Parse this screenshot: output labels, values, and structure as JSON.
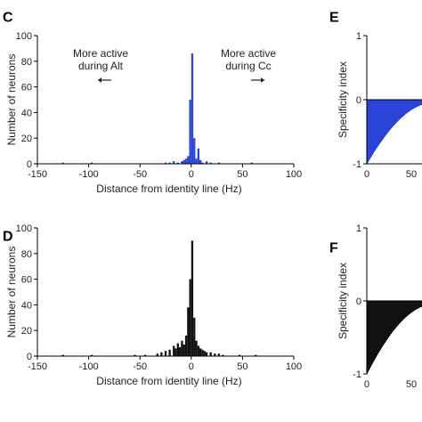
{
  "colors": {
    "blue": "#2a44d8",
    "black": "#111111",
    "axis": "#000000"
  },
  "chart_data": [
    {
      "panel": "C",
      "type": "bar",
      "color": "#2a44d8",
      "xlabel": "Distance from identity line (Hz)",
      "ylabel": "Number of neurons",
      "xlim": [
        -150,
        100
      ],
      "ylim": [
        0,
        100
      ],
      "xticks": [
        -150,
        -100,
        -50,
        0,
        50,
        100
      ],
      "yticks": [
        0,
        20,
        40,
        60,
        80,
        100
      ],
      "annotations": [
        {
          "lines": [
            "More active",
            "during Alt"
          ],
          "arrow": "left"
        },
        {
          "lines": [
            "More active",
            "during Cc"
          ],
          "arrow": "right"
        }
      ],
      "bin_width": 2,
      "bins": [
        [
          -126,
          1
        ],
        [
          -98,
          1
        ],
        [
          -26,
          1
        ],
        [
          -22,
          1
        ],
        [
          -18,
          2
        ],
        [
          -14,
          1
        ],
        [
          -10,
          2
        ],
        [
          -8,
          3
        ],
        [
          -6,
          4
        ],
        [
          -4,
          6
        ],
        [
          -2,
          50
        ],
        [
          0,
          86
        ],
        [
          2,
          20
        ],
        [
          4,
          4
        ],
        [
          6,
          12
        ],
        [
          8,
          3
        ],
        [
          10,
          1
        ],
        [
          14,
          2
        ],
        [
          18,
          1
        ],
        [
          26,
          1
        ],
        [
          58,
          1
        ]
      ]
    },
    {
      "panel": "D",
      "type": "bar",
      "color": "#111111",
      "xlabel": "Distance from identity line (Hz)",
      "ylabel": "Number of neurons",
      "xlim": [
        -150,
        100
      ],
      "ylim": [
        0,
        100
      ],
      "xticks": [
        -150,
        -100,
        -50,
        0,
        50,
        100
      ],
      "yticks": [
        0,
        20,
        40,
        60,
        80,
        100
      ],
      "bin_width": 2,
      "bins": [
        [
          -126,
          1
        ],
        [
          -98,
          1
        ],
        [
          -56,
          1
        ],
        [
          -46,
          1
        ],
        [
          -34,
          2
        ],
        [
          -30,
          3
        ],
        [
          -26,
          4
        ],
        [
          -22,
          5
        ],
        [
          -18,
          8
        ],
        [
          -16,
          6
        ],
        [
          -14,
          10
        ],
        [
          -12,
          7
        ],
        [
          -10,
          12
        ],
        [
          -8,
          9
        ],
        [
          -6,
          16
        ],
        [
          -4,
          38
        ],
        [
          -2,
          60
        ],
        [
          0,
          90
        ],
        [
          2,
          30
        ],
        [
          4,
          12
        ],
        [
          6,
          8
        ],
        [
          8,
          6
        ],
        [
          10,
          5
        ],
        [
          12,
          4
        ],
        [
          14,
          3
        ],
        [
          18,
          3
        ],
        [
          22,
          2
        ],
        [
          26,
          2
        ],
        [
          30,
          1
        ],
        [
          46,
          1
        ],
        [
          62,
          1
        ]
      ]
    },
    {
      "panel": "E",
      "type": "bar",
      "color": "#2a44d8",
      "ylabel": "Specificity index",
      "ylim": [
        -1,
        1
      ],
      "xticks": [
        0,
        50
      ],
      "yticks": [
        -1,
        0,
        1
      ],
      "shape": "sorted descending from 0 to -1"
    },
    {
      "panel": "F",
      "type": "bar",
      "color": "#111111",
      "ylabel": "Specificity index",
      "ylim": [
        -1,
        1
      ],
      "xticks": [
        0,
        50
      ],
      "yticks": [
        -1,
        0,
        1
      ],
      "shape": "sorted descending from 0 to -1"
    }
  ]
}
